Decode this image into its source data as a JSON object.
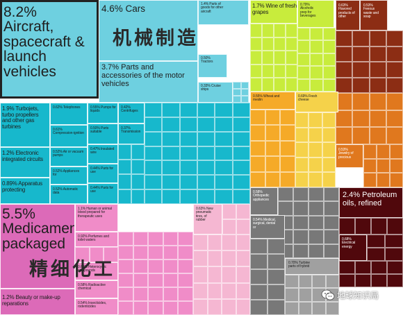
{
  "chart_data": {
    "type": "treemap",
    "unit": "%",
    "items": [
      {
        "id": "aircraft",
        "value": 8.2,
        "label": "8.2%\nAircraft,\nspacecraft &\nlaunch\nvehicles",
        "color": "#6ed0e0"
      },
      {
        "id": "cars",
        "value": 4.6,
        "label": "4.6% Cars",
        "color": "#6ed0e0"
      },
      {
        "id": "parts",
        "value": 3.7,
        "label": "3.7% Parts and\naccessories of the motor\nvehicles",
        "color": "#6ed0e0"
      },
      {
        "id": "parts-goods",
        "value": 1.4,
        "label": "1.4% Parts of\ngoods for other\naircraft",
        "color": "#6ed0e0"
      },
      {
        "id": "tractors",
        "value": 0.5,
        "label": "0.50%\nTractors",
        "color": "#6ed0e0"
      },
      {
        "id": "cruise-ships",
        "value": 0.33,
        "label": "0.33% Cruise\nships",
        "color": "#6ed0e0"
      },
      {
        "id": "turbojets",
        "value": 1.9,
        "label": "1.9% Turbojets,\nturbo propellers\nand other gas\nturbines",
        "color": "#17b8cc"
      },
      {
        "id": "circuits",
        "value": 1.2,
        "label": "1.2% Electronic\nintegrated circuits",
        "color": "#17b8cc"
      },
      {
        "id": "apparatus",
        "value": 0.89,
        "label": "0.89% Apparatus\nprotecting",
        "color": "#17b8cc"
      },
      {
        "id": "telephones",
        "value": 0.62,
        "label": "0.62% Telephones",
        "color": "#17b8cc"
      },
      {
        "id": "compression",
        "value": 0.61,
        "label": "0.61%\nCompression-ignition",
        "color": "#17b8cc"
      },
      {
        "id": "pumps",
        "value": 0.52,
        "label": "0.52% Air or vacuum\npumps",
        "color": "#17b8cc"
      },
      {
        "id": "appliances",
        "value": 0.52,
        "label": "0.52% Appliances\nfor",
        "color": "#17b8cc"
      },
      {
        "id": "automatic-data",
        "value": 0.52,
        "label": "0.52% Automatic\ndata",
        "color": "#17b8cc"
      },
      {
        "id": "liquid-pumps",
        "value": 0.55,
        "label": "0.55% Pumps for\nliquids",
        "color": "#17b8cc"
      },
      {
        "id": "soluble",
        "value": 0.5,
        "label": "0.50% Parts\nsuitable",
        "color": "#17b8cc"
      },
      {
        "id": "insulated-wire",
        "value": 0.47,
        "label": "0.47% Insulated\nwire",
        "color": "#17b8cc"
      },
      {
        "id": "parts-use",
        "value": 0.44,
        "label": "0.44% Parts for\nuse",
        "color": "#17b8cc"
      },
      {
        "id": "parts-use-2",
        "value": 0.44,
        "label": "0.44% Parts for\nuse",
        "color": "#17b8cc"
      },
      {
        "id": "centrifuges",
        "value": 0.42,
        "label": "0.42%\nCentrifuges",
        "color": "#17b8cc"
      },
      {
        "id": "transmission",
        "value": 0.37,
        "label": "0.37%\nTransmission",
        "color": "#17b8cc"
      },
      {
        "id": "medicaments",
        "value": 5.5,
        "label": "5.5%\nMedicaments,\npackaged",
        "color": "#dc6ab8"
      },
      {
        "id": "beauty",
        "value": 1.2,
        "label": "1.2% Beauty or make-up\nreparations",
        "color": "#dc6ab8"
      },
      {
        "id": "blood",
        "value": 1.1,
        "label": "1.1% Human or animal\nblood prepared for\ntherapeutic uses",
        "color": "#f08cc8"
      },
      {
        "id": "perfumes",
        "value": 0.92,
        "label": "0.92% Perfumes and\ntoilet waters",
        "color": "#f08cc8"
      },
      {
        "id": "heterocyclic",
        "value": 0.64,
        "label": "0.64% Heterocyclic\ncompounds",
        "color": "#f08cc8"
      },
      {
        "id": "radioactive",
        "value": 0.58,
        "label": "0.58% Radioactive\nchemical",
        "color": "#f08cc8"
      },
      {
        "id": "insecticides",
        "value": 0.54,
        "label": "0.54% Insecticides,\nrodenticides",
        "color": "#f08cc8"
      },
      {
        "id": "tires",
        "value": 0.63,
        "label": "0.63% New\npneumatic\ntires, of\nrubber",
        "color": "#f5b7d2"
      },
      {
        "id": "wine",
        "value": 1.7,
        "label": "1.7% Wine of fresh\ngrapes",
        "color": "#c8ec3c"
      },
      {
        "id": "alcoholic",
        "value": 0.79,
        "label": "0.79%\nAlcoholic\nprep for\nbeverages",
        "color": "#c8ec3c"
      },
      {
        "id": "wheat",
        "value": 0.55,
        "label": "0.55% Wheat and\nmeslin",
        "color": "#f5aa28"
      },
      {
        "id": "cheese",
        "value": 0.69,
        "label": "0.69% Fresh\ncheese",
        "color": "#f5d24a"
      },
      {
        "id": "flavored",
        "value": 0.63,
        "label": "0.63%\nFlavored\nproducts of\nother",
        "color": "#8c2d14"
      },
      {
        "id": "fatty",
        "value": 0.53,
        "label": "0.53%\nFeeous\nwaste and\nsoap",
        "color": "#8c2d14"
      },
      {
        "id": "precious",
        "value": 0.53,
        "label": "0.53%\nJewelry of\nprecious",
        "color": "#e0781e"
      },
      {
        "id": "orthopedic",
        "value": 0.58,
        "label": "0.58%\nOrthopedic\nappliances",
        "color": "#787878"
      },
      {
        "id": "medical",
        "value": 0.54,
        "label": "0.54% Medical,\nsurgical, dental\nor",
        "color": "#787878"
      },
      {
        "id": "turbine",
        "value": 0.7,
        "label": "0.70% Turbine\nparts of hybrid",
        "color": "#a0a0a0"
      },
      {
        "id": "petroleum",
        "value": 2.4,
        "label": "2.4% Petroleum\noils, refined",
        "color": "#50080c"
      },
      {
        "id": "energy",
        "value": 0.68,
        "label": "0.68%\nElectrical\nenergy",
        "color": "#50080c"
      }
    ],
    "annotations": [
      "机械制造",
      "精细化工"
    ]
  },
  "watermark": {
    "text": "地球知识局",
    "icon": "wechat-icon"
  }
}
